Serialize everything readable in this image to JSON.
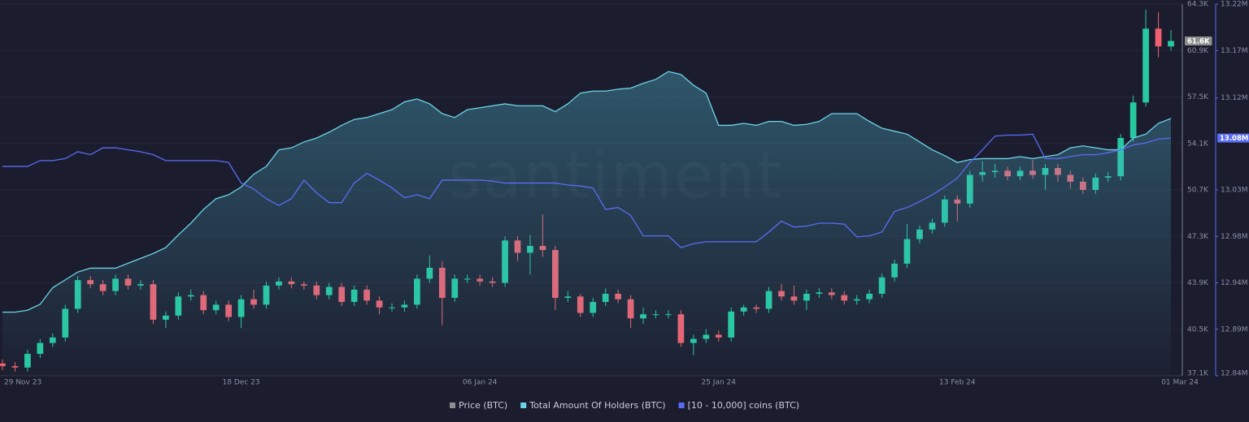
{
  "chart_data": {
    "type": "candlestick",
    "watermark": "santiment",
    "categories": [
      "29 Nov 23",
      null,
      null,
      null,
      null,
      null,
      null,
      null,
      null,
      null,
      null,
      null,
      null,
      null,
      null,
      null,
      null,
      null,
      null,
      "18 Dec 23",
      null,
      null,
      null,
      null,
      null,
      null,
      null,
      null,
      null,
      null,
      null,
      null,
      null,
      null,
      null,
      null,
      null,
      null,
      "06 Jan 24",
      null,
      null,
      null,
      null,
      null,
      null,
      null,
      null,
      null,
      null,
      null,
      null,
      null,
      null,
      null,
      null,
      null,
      null,
      "25 Jan 24",
      null,
      null,
      null,
      null,
      null,
      null,
      null,
      null,
      null,
      null,
      null,
      null,
      null,
      null,
      null,
      null,
      null,
      null,
      "13 Feb 24",
      null,
      null,
      null,
      null,
      null,
      null,
      null,
      null,
      null,
      null,
      null,
      null,
      null,
      null,
      null,
      null,
      "01 Mar 24"
    ],
    "ylim": [
      37100,
      64300
    ],
    "yticks": [
      {
        "value": 37100,
        "label": "37.1K"
      },
      {
        "value": 40500,
        "label": "40.5K"
      },
      {
        "value": 43900,
        "label": "43.9K"
      },
      {
        "value": 47300,
        "label": "47.3K"
      },
      {
        "value": 50700,
        "label": "50.7K"
      },
      {
        "value": 54100,
        "label": "54.1K"
      },
      {
        "value": 57500,
        "label": "57.5K"
      },
      {
        "value": 60900,
        "label": "60.9K"
      },
      {
        "value": 64300,
        "label": "64.3K"
      }
    ],
    "y2lim": [
      12840000,
      13220000
    ],
    "y2ticks": [
      {
        "value": 12840000,
        "label": "12.84M"
      },
      {
        "value": 12887500,
        "label": "12.89M"
      },
      {
        "value": 12935000,
        "label": "12.94M"
      },
      {
        "value": 12982500,
        "label": "12.98M"
      },
      {
        "value": 13030000,
        "label": "13.03M"
      },
      {
        "value": 13124000,
        "label": "13.12M"
      },
      {
        "value": 13172500,
        "label": "13.17M"
      },
      {
        "value": 13220000,
        "label": "13.22M"
      }
    ],
    "grid": true,
    "legend": "bottom",
    "series": [
      {
        "name": "Price (BTC)",
        "type": "candlestick",
        "legend_color": "#8e8e8e",
        "up_color": "#26c9a0",
        "down_color": "#f0606f",
        "open": [
          38000,
          37800,
          37700,
          38700,
          39500,
          39900,
          42000,
          44100,
          43800,
          43300,
          44200,
          43700,
          43800,
          41200,
          41500,
          42900,
          43000,
          41900,
          42300,
          41400,
          42700,
          42300,
          43700,
          44000,
          43800,
          43700,
          43000,
          43600,
          42500,
          43400,
          42600,
          42100,
          42100,
          42300,
          44200,
          45000,
          42800,
          44200,
          44200,
          44000,
          43900,
          47000,
          46100,
          46600,
          46300,
          42800,
          42900,
          41700,
          42500,
          43100,
          42700,
          41300,
          41600,
          41600,
          41600,
          39500,
          39800,
          40100,
          39900,
          41800,
          42100,
          42000,
          43300,
          42900,
          42600,
          43100,
          43200,
          43000,
          42600,
          42700,
          43100,
          44300,
          45300,
          47100,
          47800,
          48300,
          50000,
          49700,
          51800,
          52000,
          52100,
          51700,
          52100,
          51800,
          52300,
          51800,
          51300,
          50700,
          51600,
          51700,
          54500,
          57100,
          62500,
          61200
        ],
        "high": [
          38300,
          38100,
          39000,
          39800,
          40200,
          42300,
          44400,
          44400,
          44100,
          44500,
          44500,
          44100,
          44100,
          41800,
          43200,
          43400,
          43300,
          42600,
          42600,
          43000,
          43400,
          44000,
          44300,
          44300,
          44000,
          44000,
          43900,
          43900,
          43700,
          43700,
          42900,
          42400,
          42600,
          44500,
          45900,
          45500,
          44500,
          44500,
          44500,
          44300,
          47300,
          47300,
          47400,
          48900,
          46600,
          43300,
          43100,
          42800,
          43500,
          43400,
          43000,
          42100,
          41900,
          41900,
          41900,
          40100,
          40500,
          40400,
          42100,
          42300,
          42300,
          43600,
          43800,
          43700,
          43400,
          43500,
          43500,
          43300,
          43000,
          43400,
          44600,
          45600,
          48200,
          48100,
          48600,
          50300,
          50300,
          52100,
          52800,
          52600,
          52400,
          52400,
          52900,
          52600,
          52600,
          52100,
          51600,
          51900,
          52000,
          54800,
          57600,
          63900,
          63700,
          62400
        ],
        "low": [
          37500,
          37400,
          37400,
          38400,
          39200,
          39600,
          41700,
          43500,
          43000,
          43000,
          43400,
          43400,
          40900,
          40600,
          41200,
          42600,
          41600,
          41600,
          41100,
          40600,
          42000,
          42000,
          43400,
          43500,
          43400,
          42700,
          42700,
          42200,
          42200,
          42300,
          41600,
          41800,
          41800,
          42000,
          43900,
          40800,
          42500,
          43900,
          43700,
          43600,
          43600,
          45500,
          44500,
          45800,
          41900,
          42500,
          41400,
          41400,
          42200,
          42400,
          40600,
          40900,
          41300,
          41300,
          39200,
          38600,
          39500,
          39600,
          39600,
          41500,
          41700,
          41700,
          42600,
          42300,
          41900,
          42800,
          42700,
          42300,
          42300,
          42400,
          42800,
          44000,
          45000,
          46800,
          47500,
          48000,
          48400,
          49400,
          51300,
          51600,
          51400,
          51400,
          51500,
          50700,
          51300,
          50800,
          50400,
          50400,
          51300,
          51400,
          54200,
          56800,
          60400,
          60900
        ],
        "close": [
          37800,
          37700,
          38700,
          39500,
          39900,
          42000,
          44100,
          43800,
          43300,
          44200,
          43700,
          43800,
          41200,
          41500,
          42900,
          43000,
          41900,
          42300,
          41400,
          42700,
          42300,
          43700,
          44000,
          43800,
          43700,
          43000,
          43600,
          42500,
          43400,
          42600,
          42100,
          42100,
          42300,
          44200,
          45000,
          42800,
          44200,
          44200,
          44000,
          43900,
          47000,
          46100,
          46600,
          46300,
          42800,
          42900,
          41700,
          42500,
          43100,
          42700,
          41300,
          41600,
          41600,
          41600,
          39500,
          39800,
          40100,
          39900,
          41800,
          42100,
          42000,
          43300,
          42900,
          42600,
          43100,
          43200,
          43000,
          42600,
          42700,
          43100,
          44300,
          45300,
          47100,
          47800,
          48300,
          50000,
          49700,
          51800,
          52000,
          52100,
          51700,
          52100,
          51800,
          52300,
          51800,
          51300,
          50700,
          51600,
          51700,
          54500,
          57100,
          62500,
          61200,
          61600
        ]
      },
      {
        "name": "Total Amount Of Holders (BTC)",
        "type": "area",
        "color": "#6dd3e6",
        "axis": "y2",
        "values": [
          12905000,
          12905000,
          12907000,
          12913000,
          12930000,
          12938000,
          12946000,
          12950000,
          12950000,
          12950000,
          12955000,
          12960000,
          12965000,
          12971000,
          12984000,
          12996000,
          13010000,
          13021000,
          13025000,
          13033000,
          13046000,
          13054000,
          13071000,
          13073000,
          13079000,
          13083000,
          13089000,
          13096000,
          13102000,
          13104000,
          13108000,
          13112000,
          13120000,
          13123000,
          13118000,
          13108000,
          13104000,
          13112000,
          13114000,
          13116000,
          13118000,
          13116000,
          13116000,
          13116000,
          13110000,
          13118000,
          13129000,
          13131000,
          13131000,
          13133000,
          13134000,
          13139000,
          13143000,
          13151000,
          13148000,
          13137000,
          13129000,
          13096000,
          13096000,
          13098000,
          13096000,
          13100000,
          13100000,
          13096000,
          13097000,
          13100000,
          13108000,
          13108000,
          13108000,
          13100000,
          13093000,
          13090000,
          13087000,
          13079000,
          13071000,
          13065000,
          13058000,
          13061000,
          13062000,
          13062000,
          13062000,
          13064000,
          13062000,
          13064000,
          13066000,
          13073000,
          13075000,
          13073000,
          13071000,
          13071000,
          13083000,
          13087000,
          13098000,
          13103000
        ]
      },
      {
        "name": "[10 - 10,000] coins (BTC)",
        "type": "line",
        "color": "#5b6cf6",
        "axis": "y2",
        "values": [
          13054000,
          13054000,
          13054000,
          13060000,
          13060000,
          13062000,
          13069000,
          13066000,
          13073000,
          13073000,
          13071000,
          13069000,
          13066000,
          13060000,
          13060000,
          13060000,
          13060000,
          13060000,
          13058000,
          13037000,
          13031000,
          13021000,
          13014000,
          13021000,
          13040000,
          13027000,
          13017000,
          13017000,
          13037000,
          13047000,
          13040000,
          13032000,
          13022000,
          13025000,
          13021000,
          13040000,
          13040000,
          13040000,
          13040000,
          13039000,
          13037000,
          13037000,
          13037000,
          13037000,
          13037000,
          13035000,
          13034000,
          13032000,
          13010000,
          13012000,
          13004000,
          12983000,
          12983000,
          12983000,
          12971000,
          12975000,
          12977000,
          12977000,
          12977000,
          12977000,
          12977000,
          12987000,
          12998000,
          12992000,
          12993000,
          12996000,
          12996000,
          12995000,
          12982000,
          12983000,
          12987000,
          13008000,
          13012000,
          13018000,
          13025000,
          13033000,
          13042000,
          13058000,
          13071000,
          13085000,
          13086000,
          13086000,
          13087000,
          13062000,
          13062000,
          13064000,
          13066000,
          13066000,
          13068000,
          13071000,
          13076000,
          13078000,
          13082000,
          13083000
        ]
      }
    ],
    "markers": [
      {
        "value": 61600,
        "label": "61.6K",
        "axis": "y",
        "color": "#8e8e8e"
      },
      {
        "value": 13083000,
        "label": "13.08M",
        "axis": "y2",
        "color": "#5b6cf6"
      }
    ]
  }
}
